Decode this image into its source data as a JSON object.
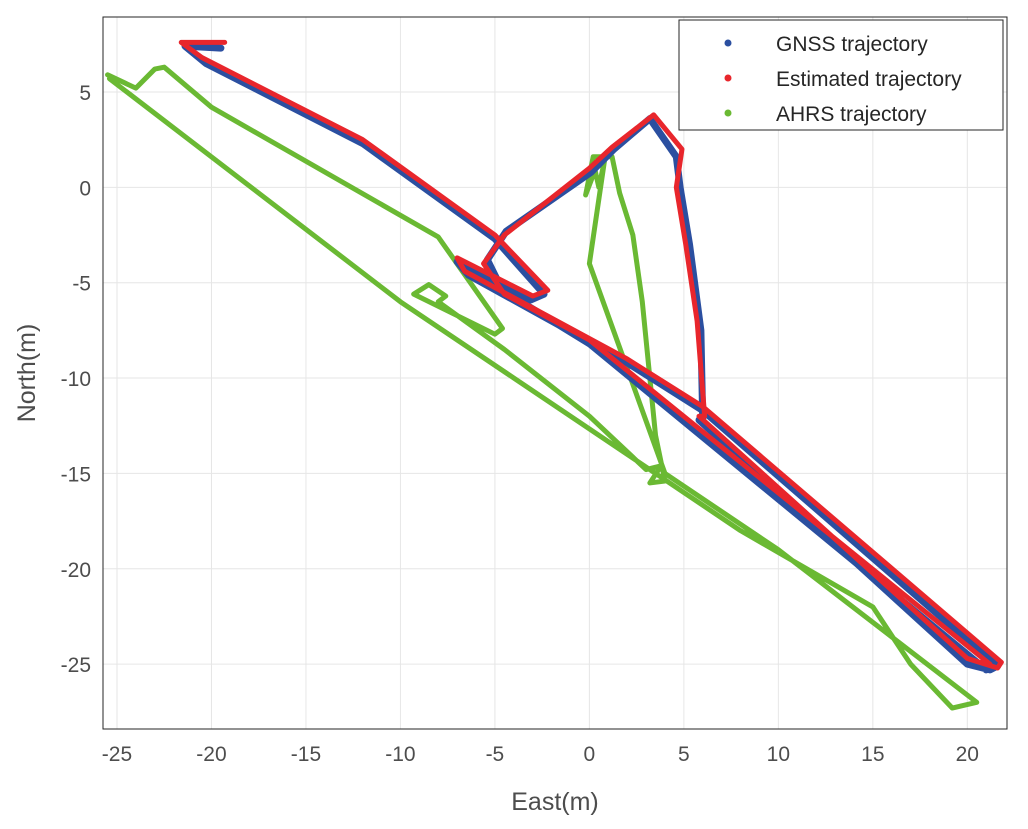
{
  "chart_data": {
    "type": "scatter",
    "title": "",
    "xlabel": "East(m)",
    "ylabel": "North(m)",
    "xlim": [
      -25.74,
      22.1
    ],
    "ylim": [
      -28.4,
      8.93
    ],
    "xticks": [
      -25,
      -20,
      -15,
      -10,
      -5,
      0,
      5,
      10,
      15,
      20
    ],
    "yticks": [
      5,
      0,
      -5,
      -10,
      -15,
      -20,
      -25
    ],
    "grid": true,
    "legend_position": "top-right",
    "series": [
      {
        "name": "GNSS trajectory",
        "color": "#2b4fa0",
        "points": [
          [
            -19.5,
            7.3
          ],
          [
            -21.4,
            7.4
          ],
          [
            -20.3,
            6.5
          ],
          [
            -12,
            2.3
          ],
          [
            -5,
            -2.7
          ],
          [
            -2.4,
            -5.6
          ],
          [
            -3.1,
            -5.9
          ],
          [
            -7,
            -3.9
          ],
          [
            -6.4,
            -4.6
          ],
          [
            2,
            -9.2
          ],
          [
            6,
            -11.7
          ],
          [
            21.6,
            -25.1
          ],
          [
            21.2,
            -25.3
          ],
          [
            20,
            -25
          ],
          [
            5.8,
            -12.2
          ],
          [
            6,
            -12.3
          ],
          [
            5.9,
            -7.5
          ],
          [
            5.3,
            -3
          ],
          [
            4.8,
            0
          ],
          [
            4.6,
            1.6
          ],
          [
            3.2,
            3.6
          ],
          [
            1.3,
            2
          ],
          [
            0.1,
            0.8
          ],
          [
            -4.4,
            -2.3
          ],
          [
            -5.4,
            -3.8
          ],
          [
            -4.6,
            -5.4
          ],
          [
            0,
            -8.2
          ],
          [
            21,
            -25.3
          ]
        ]
      },
      {
        "name": "Estimated trajectory",
        "color": "#e8262c",
        "points": [
          [
            -19.3,
            7.6
          ],
          [
            -21.6,
            7.6
          ],
          [
            -20.5,
            6.8
          ],
          [
            -12,
            2.5
          ],
          [
            -5,
            -2.5
          ],
          [
            -2.2,
            -5.4
          ],
          [
            -3,
            -5.7
          ],
          [
            -7,
            -3.7
          ],
          [
            -6.6,
            -4.4
          ],
          [
            2,
            -9
          ],
          [
            6,
            -11.5
          ],
          [
            21.8,
            -24.9
          ],
          [
            21.6,
            -25.2
          ],
          [
            20,
            -24.7
          ],
          [
            5.8,
            -12
          ],
          [
            6.1,
            -12
          ],
          [
            5.7,
            -7
          ],
          [
            5.1,
            -3
          ],
          [
            4.6,
            0
          ],
          [
            4.9,
            2
          ],
          [
            3.4,
            3.8
          ],
          [
            1.2,
            2.1
          ],
          [
            0,
            1
          ],
          [
            -4.5,
            -2.5
          ],
          [
            -5.6,
            -4
          ],
          [
            -4.5,
            -5.6
          ],
          [
            0,
            -8
          ],
          [
            21.2,
            -25
          ]
        ]
      },
      {
        "name": "AHRS trajectory",
        "color": "#6ab933",
        "points": [
          [
            -25.5,
            5.9
          ],
          [
            -24,
            5.2
          ],
          [
            -23,
            6.2
          ],
          [
            -22.5,
            6.3
          ],
          [
            -20,
            4.2
          ],
          [
            -8,
            -2.6
          ],
          [
            -4.6,
            -7.4
          ],
          [
            -5,
            -7.7
          ],
          [
            -9.3,
            -5.6
          ],
          [
            -8.5,
            -5.1
          ],
          [
            -7.6,
            -5.7
          ],
          [
            -8,
            -6
          ],
          [
            -4.5,
            -8.5
          ],
          [
            0,
            -12
          ],
          [
            3,
            -14.8
          ],
          [
            3.8,
            -14.6
          ],
          [
            3.2,
            -15.5
          ],
          [
            4,
            -15.4
          ],
          [
            3.5,
            -13
          ],
          [
            2.8,
            -6
          ],
          [
            2.3,
            -2.5
          ],
          [
            1.6,
            -0.3
          ],
          [
            1.2,
            1.6
          ],
          [
            0.2,
            1.6
          ],
          [
            -0.2,
            -0.4
          ],
          [
            0.3,
            0.9
          ],
          [
            0.5,
            0
          ],
          [
            0.8,
            1.4
          ],
          [
            0,
            -4
          ],
          [
            4,
            -15
          ],
          [
            10,
            -19
          ],
          [
            20.5,
            -27
          ],
          [
            19.2,
            -27.3
          ],
          [
            17,
            -25
          ],
          [
            15,
            -22
          ],
          [
            8,
            -18
          ],
          [
            -10,
            -6
          ],
          [
            -25.4,
            5.7
          ]
        ]
      }
    ]
  }
}
